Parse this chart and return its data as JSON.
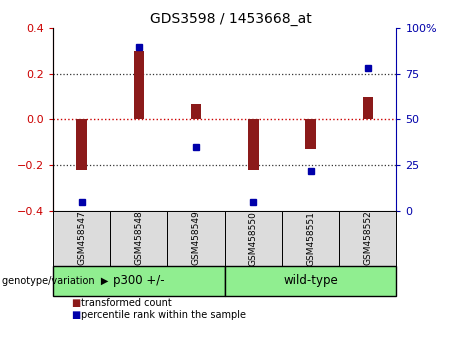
{
  "title": "GDS3598 / 1453668_at",
  "samples": [
    "GSM458547",
    "GSM458548",
    "GSM458549",
    "GSM458550",
    "GSM458551",
    "GSM458552"
  ],
  "red_bars": [
    -0.22,
    0.3,
    0.07,
    -0.22,
    -0.13,
    0.1
  ],
  "blue_dots": [
    5,
    90,
    35,
    5,
    22,
    78
  ],
  "ylim_left": [
    -0.4,
    0.4
  ],
  "ylim_right": [
    0,
    100
  ],
  "yticks_left": [
    -0.4,
    -0.2,
    0,
    0.2,
    0.4
  ],
  "yticks_right": [
    0,
    25,
    50,
    75,
    100
  ],
  "ytick_labels_right": [
    "0",
    "25",
    "50",
    "75",
    "100%"
  ],
  "hlines_dotted": [
    -0.2,
    0.2
  ],
  "zero_line": 0.0,
  "bar_color": "#8B1A1A",
  "dot_color": "#0000AA",
  "zero_line_color": "#CC0000",
  "dotted_line_color": "#333333",
  "group1_label": "p300 +/-",
  "group2_label": "wild-type",
  "group_color": "#90EE90",
  "xlabel_label": "genotype/variation",
  "legend_red": "transformed count",
  "legend_blue": "percentile rank within the sample",
  "bar_width": 0.18,
  "bg_color": "#DCDCDC",
  "plot_bg": "#FFFFFF",
  "left_axis_color": "#CC0000",
  "right_axis_color": "#0000AA"
}
